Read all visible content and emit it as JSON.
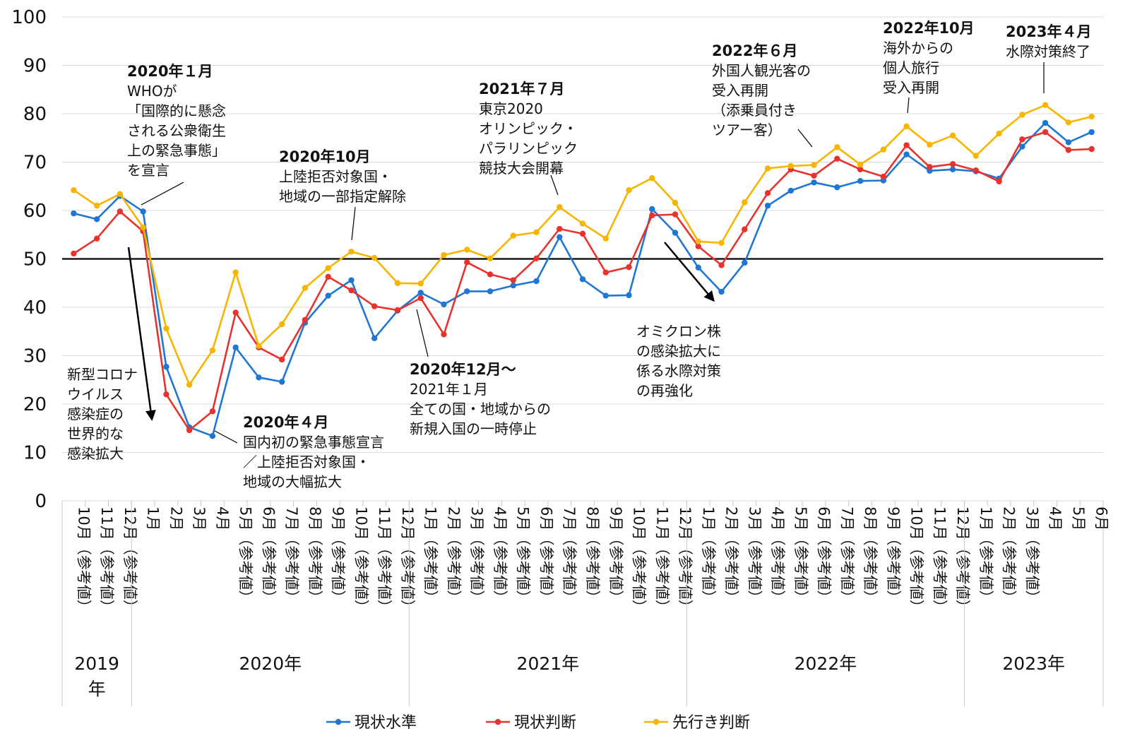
{
  "chart_data": {
    "type": "line",
    "ylim": [
      0,
      100
    ],
    "yticks": [
      0,
      10,
      20,
      30,
      40,
      50,
      60,
      70,
      80,
      90,
      100
    ],
    "reference_line": 50,
    "grid": true,
    "legend_position": "bottom",
    "x": [
      "10月（参考値）",
      "11月（参考値）",
      "12月（参考値）",
      "1月",
      "2月",
      "3月",
      "4月",
      "5月（参考値）",
      "6月（参考値）",
      "7月（参考値）",
      "8月（参考値）",
      "9月（参考値）",
      "10月（参考値）",
      "11月（参考値）",
      "12月（参考値）",
      "1月（参考値）",
      "2月（参考値）",
      "3月（参考値）",
      "4月（参考値）",
      "5月（参考値）",
      "6月（参考値）",
      "7月（参考値）",
      "8月（参考値）",
      "9月（参考値）",
      "10月（参考値）",
      "11月（参考値）",
      "12月（参考値）",
      "1月（参考値）",
      "2月（参考値）",
      "3月（参考値）",
      "4月（参考値）",
      "5月（参考値）",
      "6月（参考値）",
      "7月（参考値）",
      "8月（参考値）",
      "9月（参考値）",
      "10月（参考値）",
      "11月（参考値）",
      "12月（参考値）",
      "1月（参考値）",
      "2月（参考値）",
      "3月（参考値）",
      "4月",
      "5月",
      "6月"
    ],
    "years": [
      {
        "label": "2019年",
        "start": 0,
        "end": 2
      },
      {
        "label": "2020年",
        "start": 3,
        "end": 14
      },
      {
        "label": "2021年",
        "start": 15,
        "end": 26
      },
      {
        "label": "2022年",
        "start": 27,
        "end": 38
      },
      {
        "label": "2023年",
        "start": 39,
        "end": 44
      }
    ],
    "series": [
      {
        "name": "現状水準",
        "color": "#1f77d4",
        "values": [
          59.4,
          58.2,
          63.0,
          59.8,
          27.7,
          15.2,
          13.4,
          31.7,
          25.5,
          24.6,
          36.8,
          42.4,
          45.6,
          33.6,
          39.3,
          43.0,
          40.6,
          43.3,
          43.3,
          44.5,
          45.4,
          54.5,
          45.8,
          42.4,
          42.5,
          60.3,
          55.4,
          48.2,
          43.2,
          49.2,
          61.0,
          64.1,
          65.8,
          64.8,
          66.1,
          66.2,
          71.6,
          68.2,
          68.5,
          68.1,
          66.6,
          73.2,
          78.1,
          74.1,
          76.2
        ]
      },
      {
        "name": "現状判断",
        "color": "#e8322d",
        "values": [
          51.1,
          54.2,
          59.8,
          55.7,
          22.0,
          14.6,
          18.5,
          38.9,
          31.7,
          29.2,
          37.4,
          46.3,
          43.5,
          40.2,
          39.4,
          41.9,
          34.4,
          49.3,
          46.8,
          45.6,
          50.1,
          56.2,
          55.2,
          47.2,
          48.3,
          59.0,
          59.2,
          52.6,
          48.7,
          56.1,
          63.6,
          68.5,
          67.2,
          70.7,
          68.5,
          67.0,
          73.5,
          69.0,
          69.6,
          68.3,
          66.0,
          74.7,
          76.2,
          72.5,
          72.7
        ]
      },
      {
        "name": "先行き判断",
        "color": "#f7b500",
        "values": [
          64.2,
          61.0,
          63.4,
          56.5,
          35.6,
          24.0,
          31.1,
          47.2,
          32.0,
          36.5,
          44.0,
          48.1,
          51.5,
          50.2,
          45.0,
          44.9,
          50.8,
          51.9,
          50.1,
          54.8,
          55.5,
          60.7,
          57.3,
          54.2,
          64.2,
          66.7,
          61.6,
          53.6,
          53.3,
          61.7,
          68.7,
          69.2,
          69.4,
          73.1,
          69.5,
          72.6,
          77.4,
          73.6,
          75.5,
          71.3,
          75.9,
          79.8,
          81.8,
          78.2,
          79.4
        ]
      }
    ],
    "annotations": [
      {
        "date": "2020年１月",
        "lines": [
          "WHOが",
          "「国際的に懸念",
          "される公衆衛生",
          "上の緊急事態」",
          "を宣言"
        ]
      },
      {
        "date": "2020年４月",
        "lines": [
          "国内初の緊急事態宣言",
          "／上陸拒否対象国・",
          "地域の大幅拡大"
        ]
      },
      {
        "date": "2020年10月",
        "lines": [
          "上陸拒否対象国・",
          "地域の一部指定解除"
        ]
      },
      {
        "date": "2020年12月～",
        "lines": [
          "2021年１月",
          "全ての国・地域からの",
          "新規入国の一時停止"
        ]
      },
      {
        "date": "2021年７月",
        "lines": [
          "東京2020",
          "オリンピック・",
          "パラリンピック",
          "競技大会開幕"
        ]
      },
      {
        "date": "2022年６月",
        "lines": [
          "外国人観光客の",
          "受入再開",
          "（添乗員付き",
          "ツアー客）"
        ]
      },
      {
        "date": "2022年10月",
        "lines": [
          "海外からの",
          "個人旅行",
          "受入再開"
        ]
      },
      {
        "date": "2023年４月",
        "lines": [
          "水際対策終了"
        ]
      },
      {
        "date": "",
        "lines": [
          "新型コロナ",
          "ウイルス",
          "感染症の",
          "世界的な",
          "感染拡大"
        ]
      },
      {
        "date": "",
        "lines": [
          "オミクロン株",
          "の感染拡大に",
          "係る水際対策",
          "の再強化"
        ]
      }
    ]
  }
}
